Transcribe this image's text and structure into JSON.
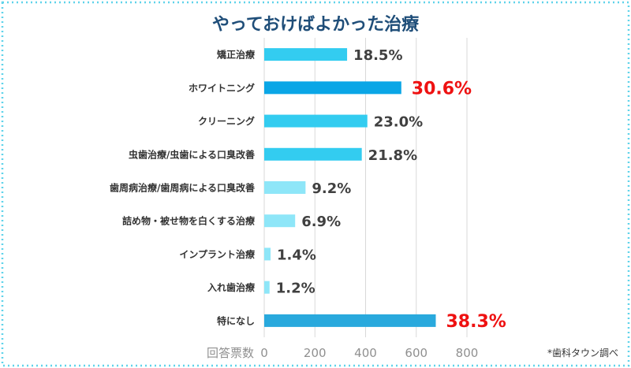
{
  "chart_data": {
    "type": "bar",
    "orientation": "horizontal",
    "title": "やっておけばよかった治療",
    "xlabel": "回答票数",
    "source_note": "*歯科タウン調べ",
    "xlim": [
      0,
      800
    ],
    "xticks": [
      0,
      200,
      400,
      600,
      800
    ],
    "grid": true,
    "categories": [
      "矯正治療",
      "ホワイトニング",
      "クリーニング",
      "虫歯治療/虫歯による口臭改善",
      "歯周病治療/歯周病による口臭改善",
      "詰め物・被せ物を白くする治療",
      "インプラント治療",
      "入れ歯治療",
      "特になし"
    ],
    "values": [
      327,
      541,
      407,
      385,
      163,
      122,
      25,
      21,
      677
    ],
    "data_labels": [
      "18.5%",
      "30.6%",
      "23.0%",
      "21.8%",
      "9.2%",
      "6.9%",
      "1.4%",
      "1.2%",
      "38.3%"
    ],
    "highlight": [
      false,
      true,
      false,
      false,
      false,
      false,
      false,
      false,
      true
    ],
    "bar_colors": [
      "#33ccf0",
      "#0aa6e6",
      "#33ccf0",
      "#33ccf0",
      "#8ee6f8",
      "#8ee6f8",
      "#8ee6f8",
      "#8ee6f8",
      "#29a9dd"
    ],
    "label_color": "#404040",
    "highlight_label_color": "#ee1111",
    "title_color": "#1f4e79",
    "border_color": "#5fd3ea",
    "grid_color": "#d9d9d9"
  }
}
